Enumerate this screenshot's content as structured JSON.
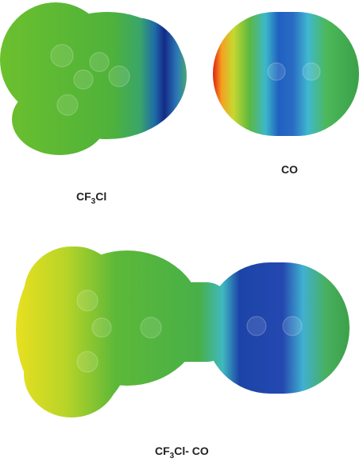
{
  "labels": [
    {
      "parts": [
        "CF",
        "3",
        "Cl"
      ]
    },
    {
      "parts": [
        "CO"
      ]
    },
    {
      "parts": [
        "CF",
        "3",
        "Cl- CO"
      ]
    }
  ]
}
